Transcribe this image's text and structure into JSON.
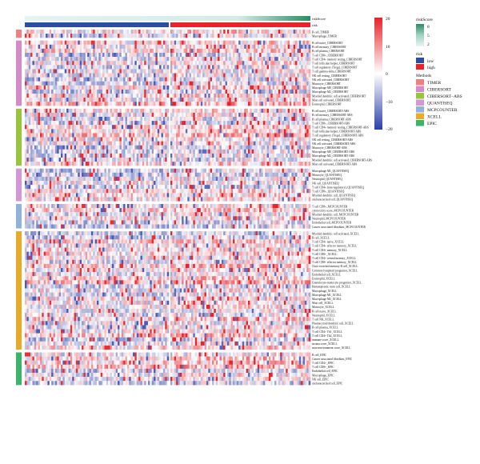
{
  "chart_data": {
    "type": "heatmap",
    "title": "",
    "annotations": {
      "riskScore": {
        "label": "riskScore",
        "ticks": [
          "8",
          "5",
          "2"
        ]
      },
      "risk": {
        "label": "risk",
        "levels": [
          "low",
          "high"
        ],
        "colors": {
          "low": "#2b4ea0",
          "high": "#e8232a"
        }
      }
    },
    "colorbar": {
      "ticks": [
        "20",
        "10",
        "0",
        "−10",
        "−20"
      ],
      "range": [
        -20,
        20
      ],
      "colors": {
        "low": "#2b3fa8",
        "mid": "#ffffff",
        "high": "#e8232a"
      }
    },
    "methods_legend_title": "Methods",
    "methods": [
      {
        "name": "TIMER",
        "color": "#ee8080"
      },
      {
        "name": "CIBERSORT",
        "color": "#d58ac9"
      },
      {
        "name": "CIBERSORT−ABS",
        "color": "#9ac43c"
      },
      {
        "name": "QUANTISEQ",
        "color": "#d496d6"
      },
      {
        "name": "MCPCOUNTER",
        "color": "#8fb3de"
      },
      {
        "name": "XCELL",
        "color": "#e8ab28"
      },
      {
        "name": "EPIC",
        "color": "#3bb36a"
      }
    ],
    "groups": [
      {
        "method": "TIMER",
        "rows": [
          "B cell_TIMER",
          "Macrophage_TIMER"
        ]
      },
      {
        "method": "CIBERSORT",
        "rows": [
          "B cell naive_CIBERSORT",
          "B cell memory_CIBERSORT",
          "B cell plasma_CIBERSORT",
          "T cell CD8+_CIBERSORT",
          "T cell CD4+ memory resting_CIBERSORT",
          "T cell follicular helper_CIBERSORT",
          "T cell regulatory (Tregs)_CIBERSORT",
          "T cell gamma delta_CIBERSORT",
          "NK cell resting_CIBERSORT",
          "NK cell activated_CIBERSORT",
          "Monocyte_CIBERSORT",
          "Macrophage M0_CIBERSORT",
          "Macrophage M2_CIBERSORT",
          "Myeloid dendritic cell activated_CIBERSORT",
          "Mast cell activated_CIBERSORT",
          "Eosinophil_CIBERSORT"
        ]
      },
      {
        "method": "CIBERSORT−ABS",
        "rows": [
          "B cell naive_CIBERSORT-ABS",
          "B cell memory_CIBERSORT-ABS",
          "B cell plasma_CIBERSORT-ABS",
          "T cell CD8+_CIBERSORT-ABS",
          "T cell CD4+ memory resting_CIBERSORT-ABS",
          "T cell follicular helper_CIBERSORT-ABS",
          "T cell regulatory (Tregs)_CIBERSORT-ABS",
          "NK cell resting_CIBERSORT-ABS",
          "NK cell activated_CIBERSORT-ABS",
          "Monocyte_CIBERSORT-ABS",
          "Macrophage M0_CIBERSORT-ABS",
          "Macrophage M2_CIBERSORT-ABS",
          "Myeloid dendritic cell activated_CIBERSORT-ABS",
          "Mast cell activated_CIBERSORT-ABS"
        ]
      },
      {
        "method": "QUANTISEQ",
        "rows": [
          "Macrophage M1_QUANTISEQ",
          "Monocyte_QUANTISEQ",
          "Neutrophil_QUANTISEQ",
          "NK cell_QUANTISEQ",
          "T cell CD4+ (non-regulatory)_QUANTISEQ",
          "T cell CD8+_QUANTISEQ",
          "Myeloid dendritic cell_QUANTISEQ",
          "uncharacterized cell_QUANTISEQ"
        ]
      },
      {
        "method": "MCPCOUNTER",
        "rows": [
          "T cell CD8+_MCPCOUNTER",
          "cytotoxicity score_MCPCOUNTER",
          "Myeloid dendritic cell_MCPCOUNTER",
          "Neutrophil_MCPCOUNTER",
          "Endothelial cell_MCPCOUNTER",
          "Cancer associated fibroblast_MCPCOUNTER"
        ]
      },
      {
        "method": "XCELL",
        "rows": [
          "Myeloid dendritic cell activated_XCELL",
          "B cell_XCELL",
          "T cell CD4+ naive_XCELL",
          "T cell CD4+ effector memory_XCELL",
          "T cell CD4+ memory_XCELL",
          "T cell CD8+_XCELL",
          "T cell CD4+ central memory_XCELL",
          "T cell CD8+ effector memory_XCELL",
          "Class-switched memory B cell_XCELL",
          "Common lymphoid progenitor_XCELL",
          "Endothelial cell_XCELL",
          "Eosinophil_XCELL",
          "Granulocyte-monocyte progenitor_XCELL",
          "Hematopoietic stem cell_XCELL",
          "Macrophage_XCELL",
          "Macrophage M1_XCELL",
          "Macrophage M2_XCELL",
          "Mast cell_XCELL",
          "Monocyte_XCELL",
          "B cell naive_XCELL",
          "Neutrophil_XCELL",
          "T cell NK_XCELL",
          "Plasmacytoid dendritic cell_XCELL",
          "B cell plasma_XCELL",
          "T cell CD4+ Th1_XCELL",
          "T cell CD4+ Th2_XCELL",
          "immune score_XCELL",
          "stroma score_XCELL",
          "microenvironment score_XCELL"
        ]
      },
      {
        "method": "EPIC",
        "rows": [
          "B cell_EPIC",
          "Cancer associated fibroblast_EPIC",
          "T cell CD4+_EPIC",
          "T cell CD8+_EPIC",
          "Endothelial cell_EPIC",
          "Macrophage_EPIC",
          "NK cell_EPIC",
          "uncharacterized cell_EPIC"
        ]
      }
    ]
  }
}
